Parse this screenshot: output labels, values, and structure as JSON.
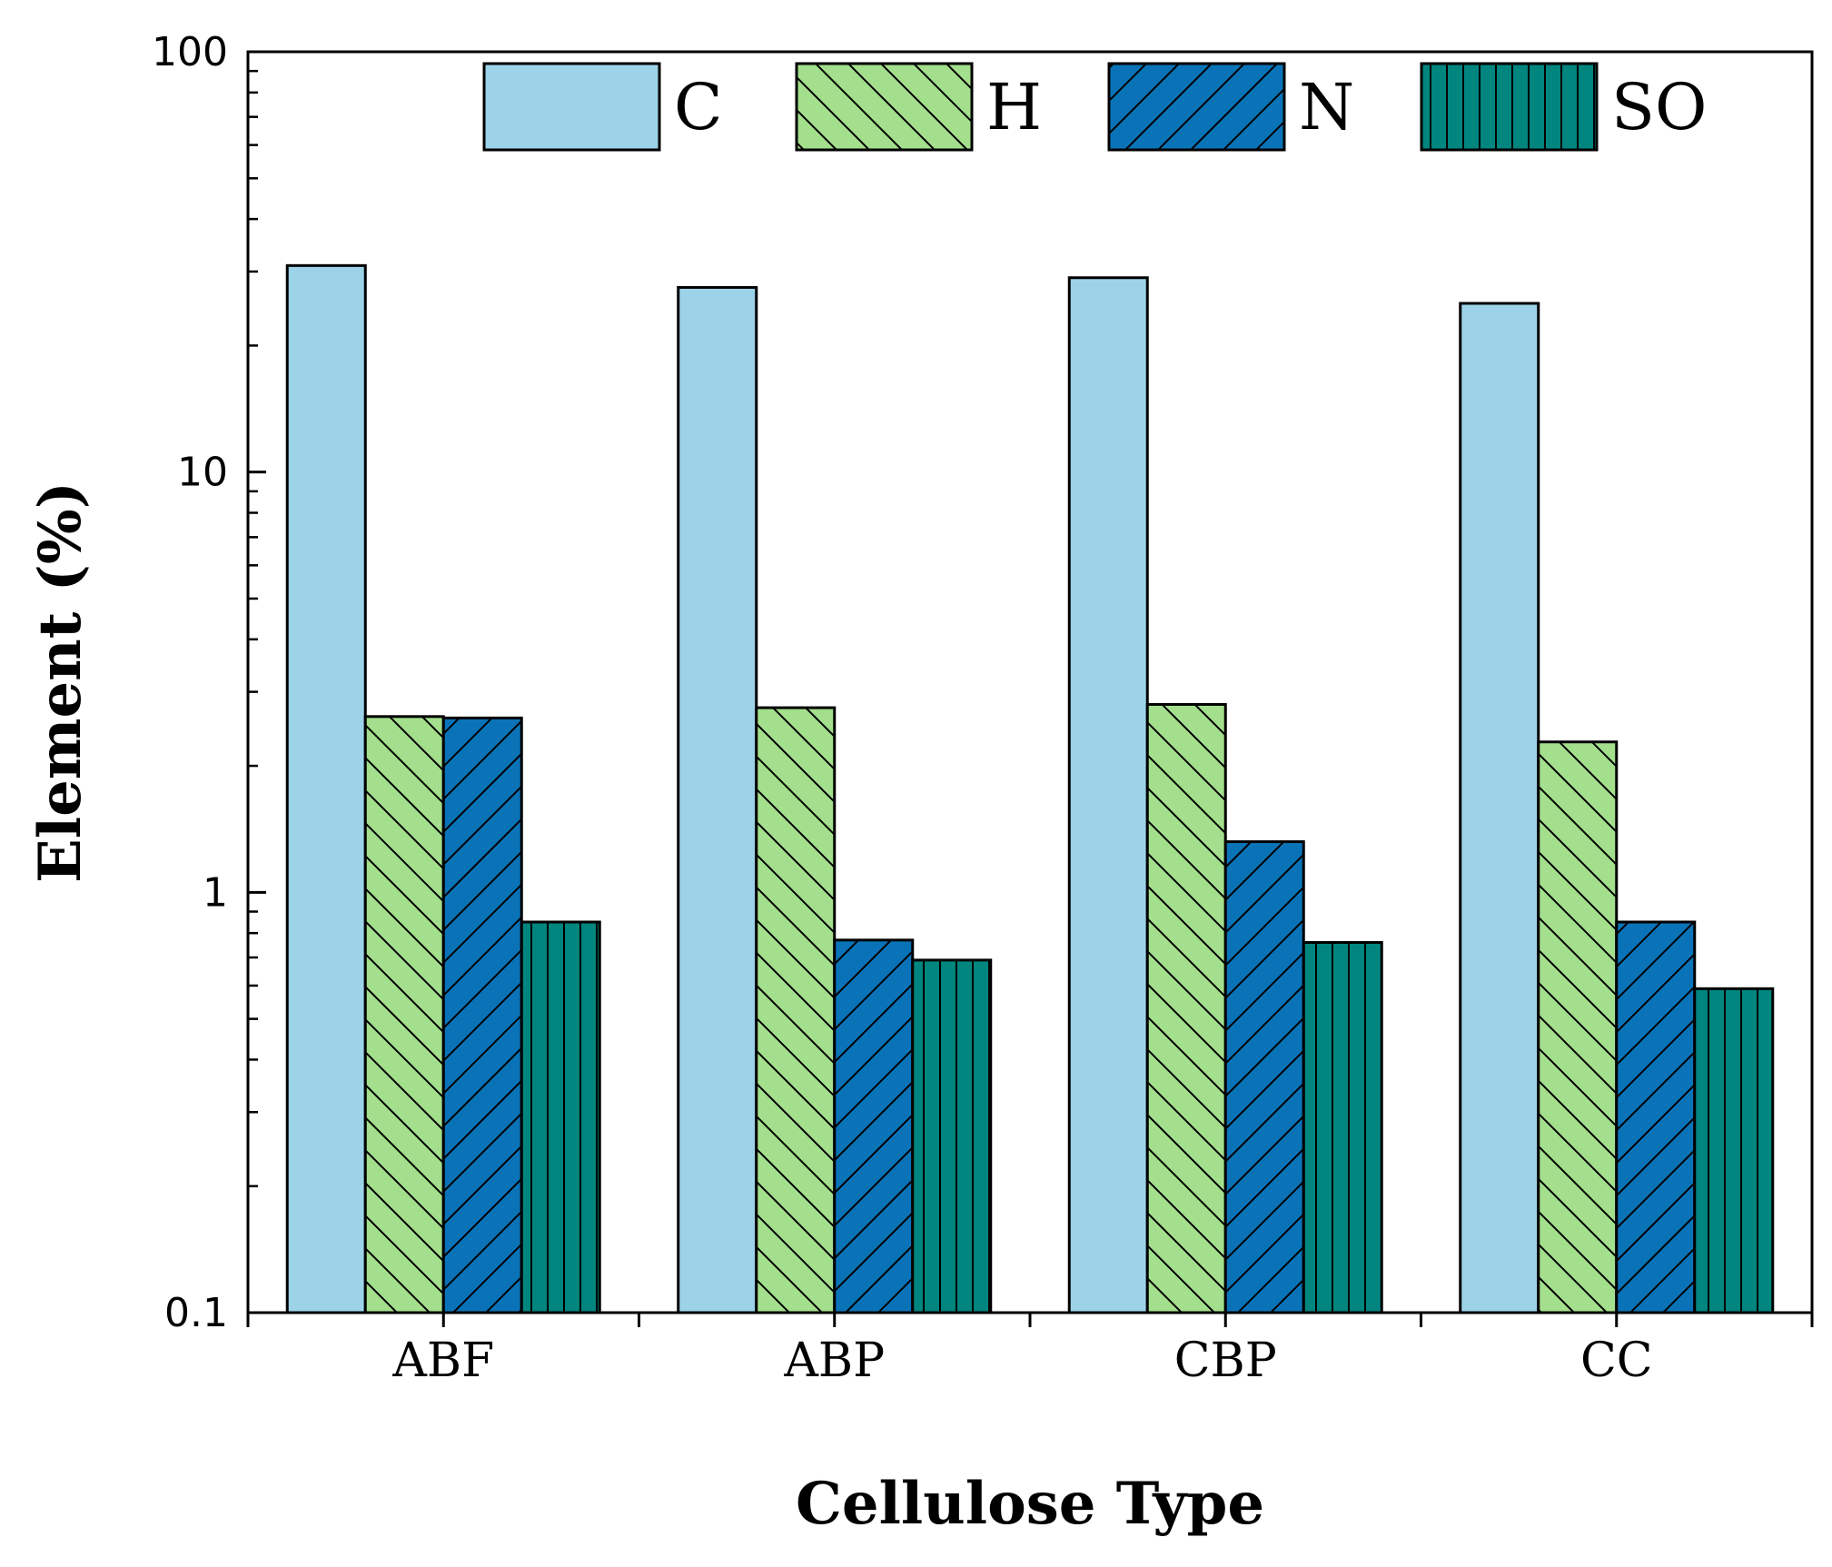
{
  "chart_data": {
    "type": "bar",
    "title": "",
    "xlabel": "Cellulose Type",
    "ylabel": "Element (%)",
    "yscale": "log",
    "ylim": [
      0.1,
      100
    ],
    "yticks": [
      0.1,
      1,
      10,
      100
    ],
    "ytick_labels": [
      "0.1",
      "1",
      "10",
      "100"
    ],
    "categories": [
      "ABF",
      "ABP",
      "CBP",
      "CC"
    ],
    "legend_position": "top",
    "series": [
      {
        "name": "C",
        "values": [
          31.0,
          27.5,
          29.0,
          25.2
        ],
        "color": "#9dd3e8",
        "pattern": "none"
      },
      {
        "name": "H",
        "values": [
          2.62,
          2.75,
          2.8,
          2.28
        ],
        "color": "#a3df8c",
        "pattern": "backslash"
      },
      {
        "name": "N",
        "values": [
          2.6,
          0.77,
          1.32,
          0.85
        ],
        "color": "#0a73b8",
        "pattern": "slash"
      },
      {
        "name": "SO",
        "values": [
          0.85,
          0.69,
          0.76,
          0.59
        ],
        "color": "#00857f",
        "pattern": "vertical"
      }
    ]
  }
}
